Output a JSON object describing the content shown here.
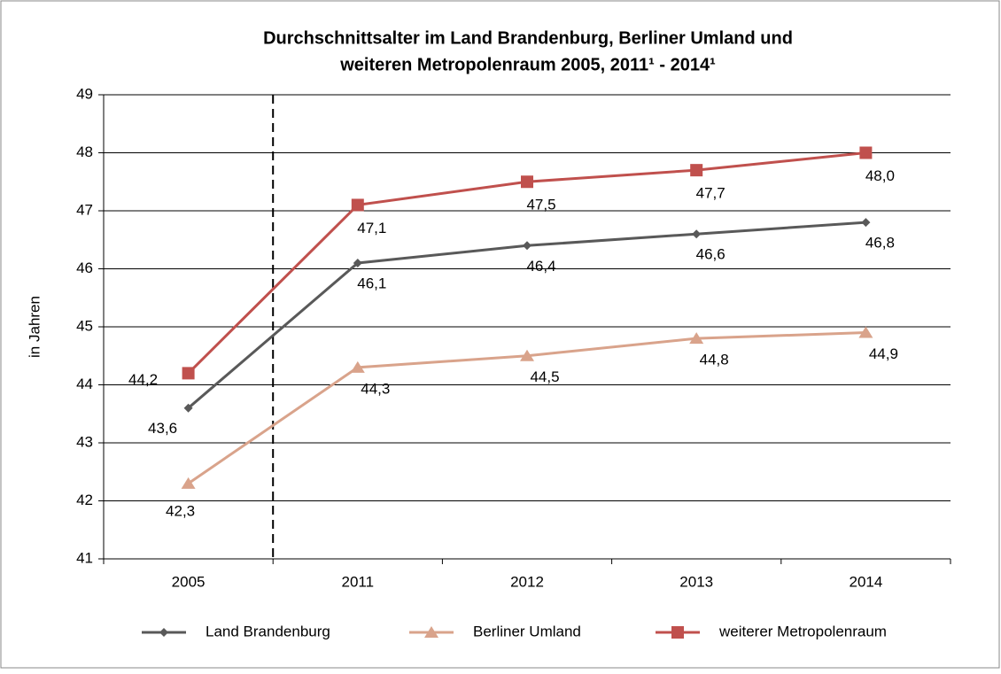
{
  "chart_data": {
    "type": "line",
    "title": [
      "Durchschnittsalter im Land Brandenburg, Berliner Umland und",
      "weiteren  Metropolenraum  2005, 2011¹ - 2014¹"
    ],
    "y_label": "in Jahren",
    "categories": [
      "2005",
      "2011",
      "2012",
      "2013",
      "2014"
    ],
    "series": [
      {
        "name": "Land Brandenburg",
        "color": "#595959",
        "marker": "diamond",
        "values": [
          43.6,
          46.1,
          46.4,
          46.6,
          46.8
        ],
        "value_labels": [
          "43,6",
          "46,1",
          "46,4",
          "46,6",
          "46,8"
        ]
      },
      {
        "name": "Berliner Umland",
        "color": "#d9a38b",
        "marker": "triangle",
        "values": [
          42.3,
          44.3,
          44.5,
          44.8,
          44.9
        ],
        "value_labels": [
          "42,3",
          "44,3",
          "44,5",
          "44,8",
          "44,9"
        ]
      },
      {
        "name": "weiterer Metropolenraum",
        "color": "#c0504d",
        "marker": "square",
        "values": [
          44.2,
          47.1,
          47.5,
          47.7,
          48.0
        ],
        "value_labels": [
          "44,2",
          "47,1",
          "47,5",
          "47,7",
          "48,0"
        ]
      }
    ],
    "ylim": [
      41,
      49
    ],
    "yticks": [
      41,
      42,
      43,
      44,
      45,
      46,
      47,
      48,
      49
    ],
    "grid": true,
    "legend": "bottom"
  }
}
